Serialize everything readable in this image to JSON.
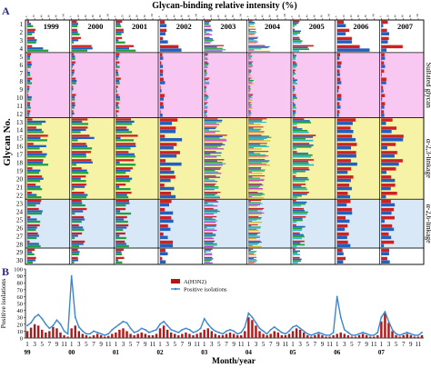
{
  "chart_data": [
    {
      "panel_label": "A",
      "type": "bar",
      "orientation": "horizontal",
      "title": "Glycan-binding relative intensity (%)",
      "ylabel": "Glycan No.",
      "x_ticks": [
        "0",
        "20",
        "40",
        "60",
        "80",
        "100"
      ],
      "xlim": [
        0,
        100
      ],
      "panels": [
        "1999",
        "2000",
        "2001",
        "2002",
        "2003",
        "2004",
        "2005",
        "2006",
        "2007"
      ],
      "glycans": [
        "1",
        "2",
        "3",
        "4",
        "5",
        "6",
        "7",
        "8",
        "9",
        "10",
        "11",
        "12",
        "13",
        "14",
        "15",
        "16",
        "17",
        "18",
        "19",
        "20",
        "21",
        "22",
        "23",
        "24",
        "25",
        "26",
        "27",
        "28",
        "29",
        "30"
      ],
      "groups": [
        {
          "label": "",
          "from": 1,
          "to": 4,
          "color": "#ffffff"
        },
        {
          "label": "Sulfated glycan",
          "from": 5,
          "to": 12,
          "color": "#f8c8f2"
        },
        {
          "label": "α-2,3-linkage",
          "from": 13,
          "to": 22,
          "color": "#f6f2a6"
        },
        {
          "label": "α-2,6-linkage",
          "from": 23,
          "to": 28,
          "color": "#d8e8f6"
        },
        {
          "label": "",
          "from": 29,
          "to": 30,
          "color": "#ffffff"
        }
      ],
      "bar_colors": [
        "#d02020",
        "#2060c0",
        "#20a040",
        "#30b8c8",
        "#c040c0",
        "#c8b020"
      ],
      "strains_per_panel": [
        3,
        3,
        3,
        2,
        5,
        6,
        4,
        2,
        2
      ],
      "intensity_by_glycan": [
        18,
        22,
        26,
        58,
        10,
        12,
        8,
        14,
        6,
        12,
        10,
        8,
        50,
        44,
        62,
        56,
        54,
        58,
        46,
        44,
        40,
        44,
        38,
        42,
        36,
        34,
        32,
        36,
        22,
        24
      ]
    },
    {
      "panel_label": "B",
      "type": "bar+line",
      "ylabel": "Positive isolations",
      "xlabel": "Month/year",
      "yticks": [
        "0",
        "10",
        "20",
        "30",
        "40",
        "50",
        "60",
        "70",
        "80",
        "90",
        "100"
      ],
      "ylim": [
        0,
        100
      ],
      "month_ticks": [
        "1",
        "3",
        "5",
        "7",
        "9",
        "11"
      ],
      "years": [
        "99",
        "00",
        "01",
        "02",
        "03",
        "04",
        "05",
        "06",
        "07"
      ],
      "series": [
        {
          "name": "A(H3N2)",
          "type": "bar",
          "color": "#b01818",
          "values": [
            10,
            15,
            20,
            18,
            12,
            8,
            10,
            16,
            14,
            8,
            4,
            2,
            14,
            18,
            10,
            6,
            4,
            2,
            4,
            6,
            4,
            2,
            3,
            6,
            8,
            12,
            14,
            10,
            6,
            4,
            6,
            8,
            6,
            4,
            4,
            6,
            14,
            18,
            12,
            8,
            6,
            4,
            6,
            8,
            6,
            4,
            6,
            8,
            12,
            14,
            10,
            6,
            4,
            4,
            6,
            8,
            6,
            4,
            4,
            10,
            30,
            26,
            18,
            10,
            6,
            4,
            6,
            10,
            8,
            4,
            4,
            6,
            10,
            14,
            12,
            8,
            4,
            2,
            4,
            6,
            4,
            2,
            2,
            4,
            6,
            8,
            6,
            4,
            2,
            2,
            4,
            6,
            4,
            2,
            2,
            4,
            24,
            36,
            22,
            10,
            4,
            2,
            4,
            6,
            4,
            2,
            2,
            4
          ]
        },
        {
          "name": "Positive isolations",
          "type": "line",
          "color": "#3a86cf",
          "values": [
            18,
            22,
            30,
            34,
            28,
            20,
            14,
            18,
            26,
            20,
            10,
            6,
            90,
            30,
            16,
            10,
            6,
            6,
            10,
            8,
            6,
            4,
            6,
            12,
            16,
            20,
            24,
            22,
            14,
            8,
            10,
            14,
            12,
            8,
            10,
            12,
            20,
            24,
            18,
            12,
            10,
            8,
            12,
            14,
            12,
            8,
            10,
            14,
            28,
            20,
            14,
            10,
            8,
            6,
            10,
            12,
            10,
            6,
            8,
            16,
            36,
            30,
            22,
            14,
            10,
            6,
            12,
            16,
            12,
            8,
            6,
            10,
            16,
            18,
            14,
            10,
            6,
            4,
            6,
            8,
            6,
            4,
            4,
            8,
            60,
            30,
            12,
            8,
            4,
            4,
            6,
            8,
            6,
            4,
            4,
            8,
            30,
            38,
            24,
            12,
            6,
            4,
            6,
            8,
            6,
            4,
            4,
            8
          ]
        }
      ]
    }
  ]
}
